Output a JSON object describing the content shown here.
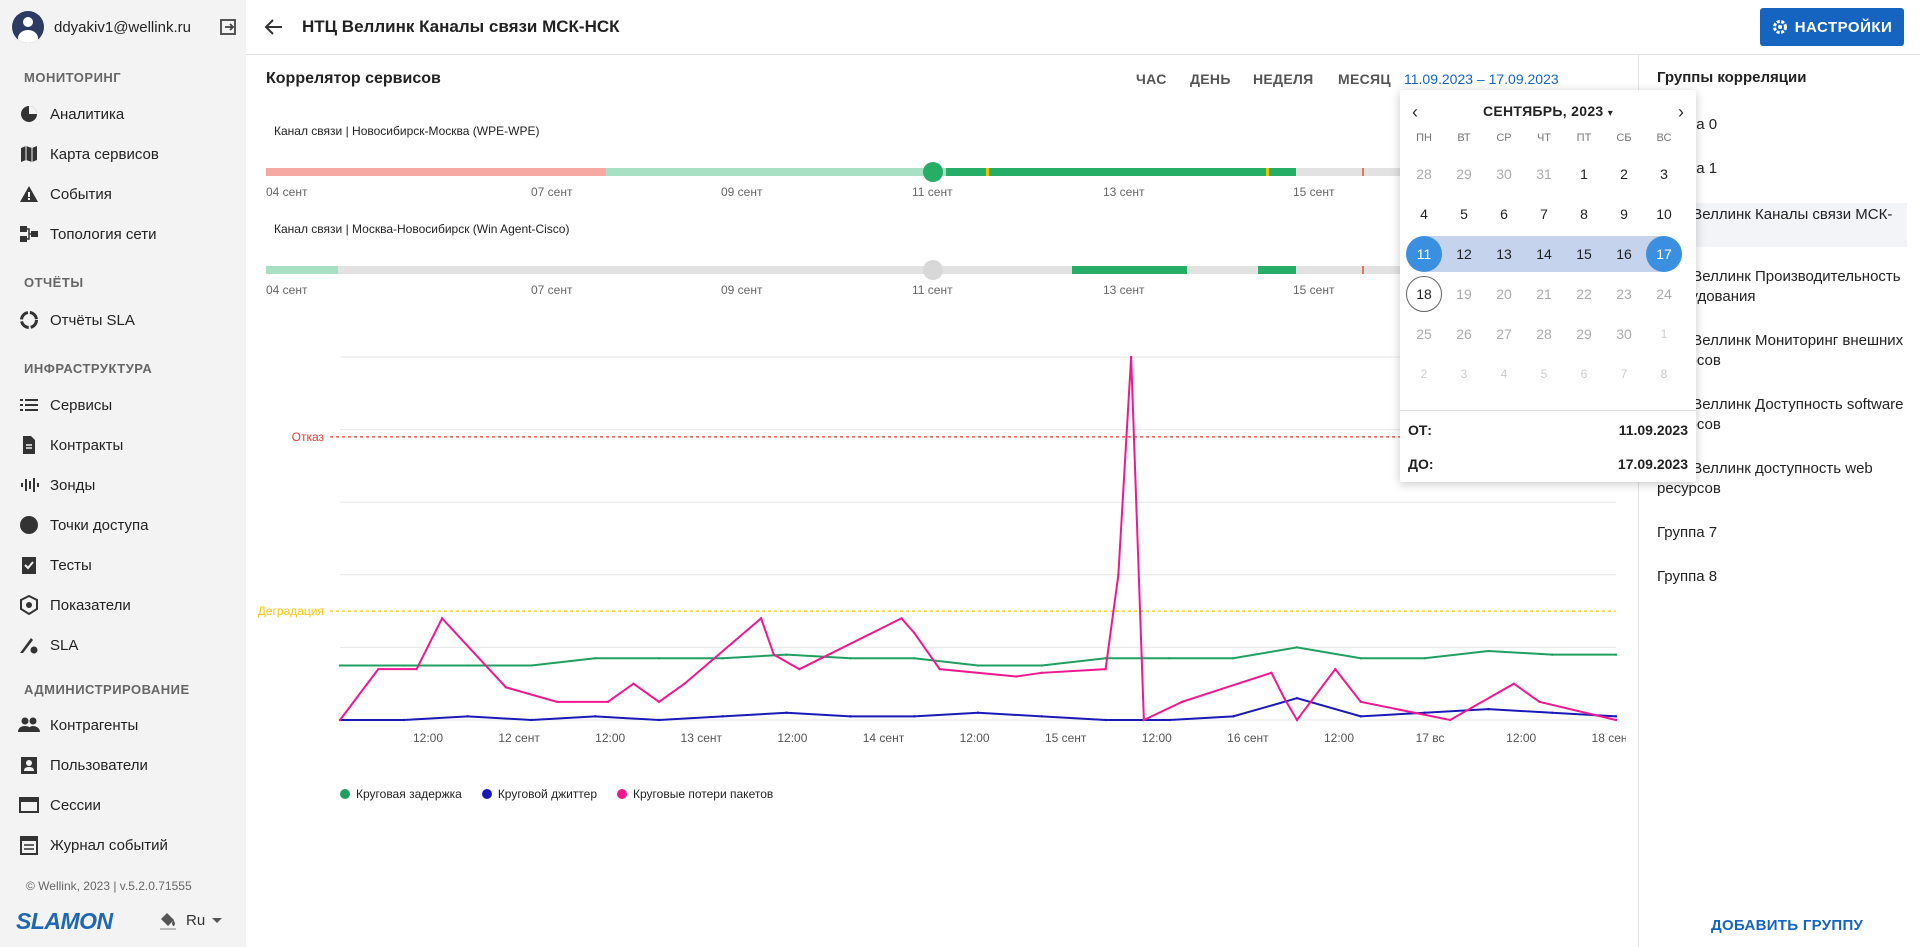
{
  "user": {
    "email": "ddyakiv1@wellink.ru"
  },
  "sidebar": {
    "sections": [
      {
        "title": "МОНИТОРИНГ",
        "items": [
          {
            "label": "Аналитика",
            "icon": "pie-chart-icon"
          },
          {
            "label": "Карта сервисов",
            "icon": "map-icon"
          },
          {
            "label": "События",
            "icon": "warning-icon"
          },
          {
            "label": "Топология сети",
            "icon": "topology-icon"
          }
        ]
      },
      {
        "title": "ОТЧЁТЫ",
        "items": [
          {
            "label": "Отчёты SLA",
            "icon": "report-icon"
          }
        ]
      },
      {
        "title": "ИНФРАСТРУКТУРА",
        "items": [
          {
            "label": "Сервисы",
            "icon": "list-icon"
          },
          {
            "label": "Контракты",
            "icon": "document-icon"
          },
          {
            "label": "Зонды",
            "icon": "probe-icon"
          },
          {
            "label": "Точки доступа",
            "icon": "access-point-icon"
          },
          {
            "label": "Тесты",
            "icon": "test-icon"
          },
          {
            "label": "Показатели",
            "icon": "metrics-icon"
          },
          {
            "label": "SLA",
            "icon": "sla-icon"
          }
        ]
      },
      {
        "title": "АДМИНИСТРИРОВАНИЕ",
        "items": [
          {
            "label": "Контрагенты",
            "icon": "people-icon"
          },
          {
            "label": "Пользователи",
            "icon": "user-card-icon"
          },
          {
            "label": "Сессии",
            "icon": "session-icon"
          },
          {
            "label": "Журнал событий",
            "icon": "journal-icon"
          }
        ]
      }
    ],
    "copyright": "© Wellink, 2023 | v.5.2.0.71555",
    "logo": "SLAMON",
    "language": "Ru"
  },
  "header": {
    "title": "НТЦ Веллинк Каналы связи МСК-НСК",
    "settings_label": "НАСТРОЙКИ"
  },
  "main": {
    "card_title": "Коррелятор сервисов",
    "period_tabs": [
      "ЧАС",
      "ДЕНЬ",
      "НЕДЕЛЯ",
      "МЕСЯЦ"
    ],
    "date_range": "11.09.2023 – 17.09.2023",
    "channels": [
      {
        "label": "Канал связи | Новосибирск-Москва (WPE-WPE)"
      },
      {
        "label": "Канал связи | Москва-Новосибирск (Win Agent-Cisco)"
      }
    ],
    "timeline_ticks": [
      "04 сент",
      "07 сент",
      "09 сент",
      "11 сент",
      "13 сент",
      "15 сент"
    ]
  },
  "chart_data": {
    "type": "line",
    "title": "",
    "xlabel": "",
    "ylabel": "",
    "x_ticks": [
      "12:00",
      "12 сент",
      "12:00",
      "13 сент",
      "12:00",
      "14 сент",
      "12:00",
      "15 сент",
      "12:00",
      "16 сент",
      "12:00",
      "17 вс",
      "12:00",
      "18 сент"
    ],
    "thresholds": [
      {
        "label": "Отказ",
        "value": 78,
        "color": "#e53935"
      },
      {
        "label": "Деградация",
        "value": 30,
        "color": "#f9c80e"
      }
    ],
    "ylim": [
      0,
      100
    ],
    "grid": true,
    "legend": "bottom-left",
    "series": [
      {
        "name": "Круговая задержка",
        "color": "#20a060",
        "x": [
          0,
          5,
          10,
          15,
          20,
          25,
          30,
          35,
          40,
          45,
          50,
          55,
          60,
          65,
          70,
          75,
          80,
          85,
          90,
          95,
          100
        ],
        "y": [
          15,
          15,
          15,
          15,
          17,
          17,
          17,
          18,
          17,
          17,
          15,
          15,
          17,
          17,
          17,
          20,
          17,
          17,
          19,
          18,
          18
        ]
      },
      {
        "name": "Круговой джиттер",
        "color": "#1a1ab8",
        "x": [
          0,
          5,
          10,
          15,
          20,
          25,
          30,
          35,
          40,
          45,
          50,
          55,
          60,
          65,
          70,
          75,
          80,
          85,
          90,
          95,
          100
        ],
        "y": [
          0,
          0,
          1,
          0,
          1,
          0,
          1,
          2,
          1,
          1,
          2,
          1,
          0,
          0,
          1,
          6,
          1,
          2,
          3,
          2,
          1
        ]
      },
      {
        "name": "Круговые потери пакетов",
        "color": "#f01890",
        "x": [
          0,
          3,
          6,
          8,
          13,
          17,
          21,
          23,
          25,
          27,
          33,
          34,
          36,
          44,
          45,
          47,
          53,
          55,
          60,
          61,
          62,
          63,
          66,
          73,
          74,
          75,
          78,
          80,
          87,
          92,
          94,
          100
        ],
        "y": [
          0,
          14,
          14,
          28,
          9,
          5,
          5,
          10,
          5,
          10,
          28,
          18,
          14,
          28,
          24,
          14,
          12,
          13,
          14,
          40,
          100,
          0,
          5,
          13,
          6,
          0,
          14,
          5,
          0,
          10,
          5,
          0
        ]
      }
    ]
  },
  "right_panel": {
    "title": "Группы корреляции",
    "groups": [
      "Группа 0",
      "Группа 1",
      "НТЦ Веллинк Каналы связи МСК-НСК",
      "НТЦ Веллинк Производительность оборудования",
      "НТЦ Веллинк Мониторинг внешних ресурсов",
      "НТЦ Веллинк Доступность software ресурсов",
      "НТЦ Веллинк доступность web ресурсов",
      "Группа 7",
      "Группа 8"
    ],
    "add_group": "ДОБАВИТЬ ГРУППУ"
  },
  "datepicker": {
    "month_label": "СЕНТЯБРЬ, 2023",
    "weekdays": [
      "ПН",
      "ВТ",
      "СР",
      "ЧТ",
      "ПТ",
      "СБ",
      "ВС"
    ],
    "weeks": [
      [
        "28",
        "29",
        "30",
        "31",
        "1",
        "2",
        "3"
      ],
      [
        "4",
        "5",
        "6",
        "7",
        "8",
        "9",
        "10"
      ],
      [
        "11",
        "12",
        "13",
        "14",
        "15",
        "16",
        "17"
      ],
      [
        "18",
        "19",
        "20",
        "21",
        "22",
        "23",
        "24"
      ],
      [
        "25",
        "26",
        "27",
        "28",
        "29",
        "30",
        "1"
      ],
      [
        "2",
        "3",
        "4",
        "5",
        "6",
        "7",
        "8"
      ]
    ],
    "from_label": "ОТ:",
    "from_value": "11.09.2023",
    "to_label": "ДО:",
    "to_value": "17.09.2023"
  }
}
